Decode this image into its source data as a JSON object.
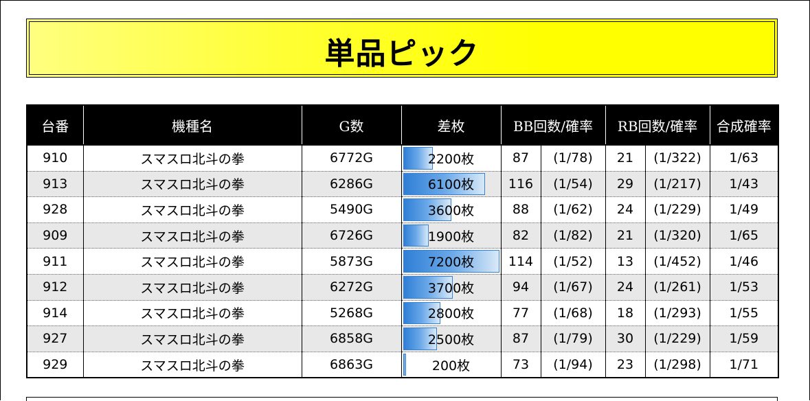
{
  "title": "単品ピック",
  "headers": {
    "machine_no": "台番",
    "model": "機種名",
    "games": "G数",
    "diff": "差枚",
    "bb": "BB回数/確率",
    "rb": "RB回数/確率",
    "combined": "合成確率"
  },
  "max_diff": 7200,
  "rows": [
    {
      "no": "910",
      "model": "スマスロ北斗の拳",
      "games": "6772G",
      "diff": 2200,
      "diff_label": "2200枚",
      "bb": "87",
      "bb_rate": "(1/78)",
      "rb": "21",
      "rb_rate": "(1/322)",
      "combined": "1/63"
    },
    {
      "no": "913",
      "model": "スマスロ北斗の拳",
      "games": "6286G",
      "diff": 6100,
      "diff_label": "6100枚",
      "bb": "116",
      "bb_rate": "(1/54)",
      "rb": "29",
      "rb_rate": "(1/217)",
      "combined": "1/43"
    },
    {
      "no": "928",
      "model": "スマスロ北斗の拳",
      "games": "5490G",
      "diff": 3600,
      "diff_label": "3600枚",
      "bb": "88",
      "bb_rate": "(1/62)",
      "rb": "24",
      "rb_rate": "(1/229)",
      "combined": "1/49"
    },
    {
      "no": "909",
      "model": "スマスロ北斗の拳",
      "games": "6726G",
      "diff": 1900,
      "diff_label": "1900枚",
      "bb": "82",
      "bb_rate": "(1/82)",
      "rb": "21",
      "rb_rate": "(1/320)",
      "combined": "1/65"
    },
    {
      "no": "911",
      "model": "スマスロ北斗の拳",
      "games": "5873G",
      "diff": 7200,
      "diff_label": "7200枚",
      "bb": "114",
      "bb_rate": "(1/52)",
      "rb": "13",
      "rb_rate": "(1/452)",
      "combined": "1/46"
    },
    {
      "no": "912",
      "model": "スマスロ北斗の拳",
      "games": "6272G",
      "diff": 3700,
      "diff_label": "3700枚",
      "bb": "94",
      "bb_rate": "(1/67)",
      "rb": "24",
      "rb_rate": "(1/261)",
      "combined": "1/53"
    },
    {
      "no": "914",
      "model": "スマスロ北斗の拳",
      "games": "5268G",
      "diff": 2800,
      "diff_label": "2800枚",
      "bb": "77",
      "bb_rate": "(1/68)",
      "rb": "18",
      "rb_rate": "(1/293)",
      "combined": "1/55"
    },
    {
      "no": "927",
      "model": "スマスロ北斗の拳",
      "games": "6858G",
      "diff": 2500,
      "diff_label": "2500枚",
      "bb": "87",
      "bb_rate": "(1/79)",
      "rb": "30",
      "rb_rate": "(1/229)",
      "combined": "1/59"
    },
    {
      "no": "929",
      "model": "スマスロ北斗の拳",
      "games": "6863G",
      "diff": 200,
      "diff_label": "200枚",
      "bb": "73",
      "bb_rate": "(1/94)",
      "rb": "23",
      "rb_rate": "(1/298)",
      "combined": "1/71"
    }
  ]
}
